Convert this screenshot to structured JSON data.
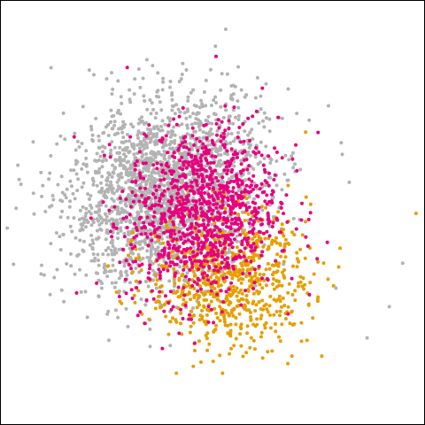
{
  "chart_data": {
    "type": "scatter",
    "title": "",
    "xlabel": "",
    "ylabel": "",
    "axes_visible": false,
    "grid": false,
    "legend": "none",
    "series": [
      {
        "color": "#b3b3b3",
        "approx_point_count": 2200,
        "cluster": {
          "center": [
            -0.8,
            0.55
          ],
          "spread": [
            1.1,
            0.75
          ],
          "correlation": 0.2
        },
        "outliers": [
          [
            4.2,
            -1.3
          ],
          [
            3.7,
            -1.8
          ],
          [
            3.0,
            -1.0
          ],
          [
            4.5,
            -0.6
          ],
          [
            3.3,
            0.7
          ]
        ]
      },
      {
        "color": "#e69f00",
        "approx_point_count": 750,
        "cluster": {
          "center": [
            0.6,
            -0.85
          ],
          "spread": [
            0.9,
            0.55
          ],
          "correlation": 0.0
        },
        "outliers": [
          [
            4.8,
            0.2
          ],
          [
            2.3,
            -0.95
          ],
          [
            1.1,
            -1.8
          ]
        ]
      },
      {
        "color": "#e6007e",
        "approx_point_count": 1100,
        "cluster": {
          "center": [
            0.0,
            0.2
          ],
          "spread": [
            0.85,
            0.7
          ],
          "correlation": 0.1
        },
        "outliers": [
          [
            2.6,
            1.5
          ],
          [
            2.1,
            1.3
          ],
          [
            1.4,
            0.9
          ]
        ]
      }
    ],
    "xlim": [
      -4.5,
      5.0
    ],
    "ylim": [
      -3.2,
      3.6
    ]
  }
}
